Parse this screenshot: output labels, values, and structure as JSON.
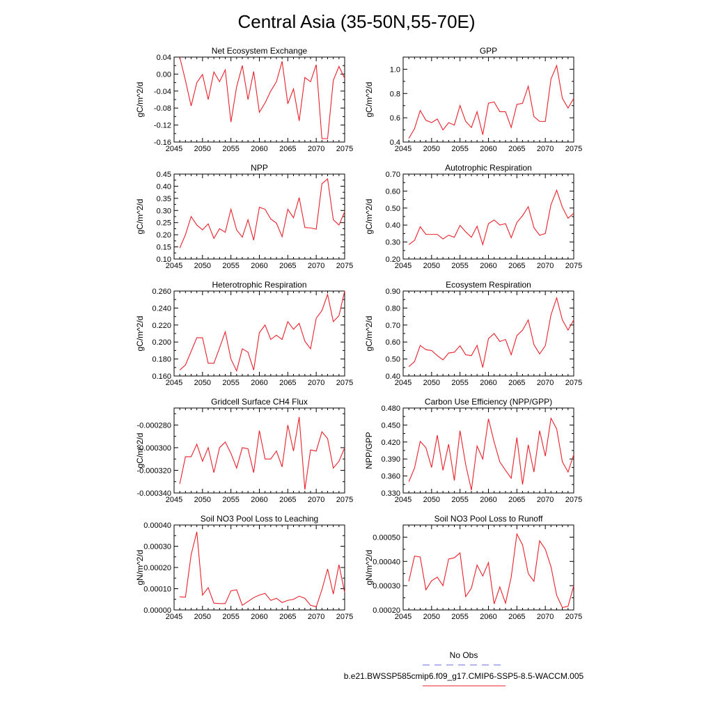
{
  "figure": {
    "title": "Central Asia (35-50N,55-70E)",
    "legend": [
      {
        "label": "No Obs",
        "color": "#6a6adf",
        "dash": true
      },
      {
        "label": "b.e21.BWSSP585cmip6.f09_g17.CMIP6-SSP5-8.5-WACCM.005",
        "color": "#e8202a",
        "dash": false
      }
    ]
  },
  "chart_data": [
    {
      "type": "line",
      "title": "Net Ecosystem Exchange",
      "ylabel": "gC/m^2/d",
      "xlim": [
        2045,
        2075
      ],
      "xticks": [
        2045,
        2050,
        2055,
        2060,
        2065,
        2070,
        2075
      ],
      "ylim": [
        -0.16,
        0.04
      ],
      "yticks": [
        -0.16,
        -0.12,
        -0.08,
        -0.04,
        0.0,
        0.04
      ],
      "ytick_labels": [
        "-0.16",
        "-0.12",
        "-0.08",
        "-0.04",
        "0.00",
        "0.04"
      ],
      "x": [
        2046,
        2047,
        2048,
        2049,
        2050,
        2051,
        2052,
        2053,
        2054,
        2055,
        2056,
        2057,
        2058,
        2059,
        2060,
        2061,
        2062,
        2063,
        2064,
        2065,
        2066,
        2067,
        2068,
        2069,
        2070,
        2071,
        2072,
        2073,
        2074,
        2075
      ],
      "series": [
        {
          "values": [
            0.04,
            -0.015,
            -0.075,
            -0.02,
            -0.001,
            -0.06,
            0.005,
            -0.018,
            0.01,
            -0.113,
            -0.03,
            0.02,
            -0.06,
            0.006,
            -0.09,
            -0.068,
            -0.04,
            -0.018,
            0.03,
            -0.07,
            -0.035,
            -0.11,
            -0.008,
            -0.018,
            0.022,
            -0.152,
            -0.152,
            -0.015,
            0.018,
            -0.01
          ],
          "color": "#e8202a"
        }
      ]
    },
    {
      "type": "line",
      "title": "GPP",
      "ylabel": "gC/m^2/d",
      "xlim": [
        2045,
        2075
      ],
      "xticks": [
        2045,
        2050,
        2055,
        2060,
        2065,
        2070,
        2075
      ],
      "ylim": [
        0.4,
        1.1
      ],
      "yticks": [
        0.4,
        0.6,
        0.8,
        1.0
      ],
      "ytick_labels": [
        "0.4",
        "0.6",
        "0.8",
        "1.0"
      ],
      "x": [
        2046,
        2047,
        2048,
        2049,
        2050,
        2051,
        2052,
        2053,
        2054,
        2055,
        2056,
        2057,
        2058,
        2059,
        2060,
        2061,
        2062,
        2063,
        2064,
        2065,
        2066,
        2067,
        2068,
        2069,
        2070,
        2071,
        2072,
        2073,
        2074,
        2075
      ],
      "series": [
        {
          "values": [
            0.43,
            0.51,
            0.66,
            0.58,
            0.56,
            0.59,
            0.5,
            0.56,
            0.54,
            0.7,
            0.57,
            0.52,
            0.65,
            0.46,
            0.72,
            0.73,
            0.65,
            0.65,
            0.52,
            0.71,
            0.72,
            0.86,
            0.61,
            0.57,
            0.57,
            0.92,
            1.03,
            0.76,
            0.68,
            0.76
          ],
          "color": "#e8202a"
        }
      ]
    },
    {
      "type": "line",
      "title": "NPP",
      "ylabel": "gC/m^2/d",
      "xlim": [
        2045,
        2075
      ],
      "xticks": [
        2045,
        2050,
        2055,
        2060,
        2065,
        2070,
        2075
      ],
      "ylim": [
        0.1,
        0.45
      ],
      "yticks": [
        0.1,
        0.15,
        0.2,
        0.25,
        0.3,
        0.35,
        0.4,
        0.45
      ],
      "ytick_labels": [
        "0.10",
        "0.15",
        "0.20",
        "0.25",
        "0.30",
        "0.35",
        "0.40",
        "0.45"
      ],
      "x": [
        2046,
        2047,
        2048,
        2049,
        2050,
        2051,
        2052,
        2053,
        2054,
        2055,
        2056,
        2057,
        2058,
        2059,
        2060,
        2061,
        2062,
        2063,
        2064,
        2065,
        2066,
        2067,
        2068,
        2069,
        2070,
        2071,
        2072,
        2073,
        2074,
        2075
      ],
      "series": [
        {
          "values": [
            0.145,
            0.2,
            0.275,
            0.24,
            0.22,
            0.245,
            0.185,
            0.225,
            0.21,
            0.305,
            0.22,
            0.19,
            0.262,
            0.178,
            0.313,
            0.305,
            0.265,
            0.248,
            0.192,
            0.305,
            0.27,
            0.353,
            0.23,
            0.228,
            0.223,
            0.41,
            0.43,
            0.262,
            0.24,
            0.295
          ],
          "color": "#e8202a"
        }
      ]
    },
    {
      "type": "line",
      "title": "Autotrophic Respiration",
      "ylabel": "gC/m^2/d",
      "xlim": [
        2045,
        2075
      ],
      "xticks": [
        2045,
        2050,
        2055,
        2060,
        2065,
        2070,
        2075
      ],
      "ylim": [
        0.2,
        0.7
      ],
      "yticks": [
        0.2,
        0.3,
        0.4,
        0.5,
        0.6,
        0.7
      ],
      "ytick_labels": [
        "0.20",
        "0.30",
        "0.40",
        "0.50",
        "0.60",
        "0.70"
      ],
      "x": [
        2046,
        2047,
        2048,
        2049,
        2050,
        2051,
        2052,
        2053,
        2054,
        2055,
        2056,
        2057,
        2058,
        2059,
        2060,
        2061,
        2062,
        2063,
        2064,
        2065,
        2066,
        2067,
        2068,
        2069,
        2070,
        2071,
        2072,
        2073,
        2074,
        2075
      ],
      "series": [
        {
          "values": [
            0.285,
            0.31,
            0.39,
            0.345,
            0.345,
            0.345,
            0.318,
            0.34,
            0.328,
            0.398,
            0.36,
            0.328,
            0.393,
            0.285,
            0.408,
            0.43,
            0.4,
            0.408,
            0.325,
            0.415,
            0.455,
            0.508,
            0.385,
            0.34,
            0.35,
            0.52,
            0.605,
            0.505,
            0.44,
            0.47
          ],
          "color": "#e8202a"
        }
      ]
    },
    {
      "type": "line",
      "title": "Heterotrophic Respiration",
      "ylabel": "gC/m^2/d",
      "xlim": [
        2045,
        2075
      ],
      "xticks": [
        2045,
        2050,
        2055,
        2060,
        2065,
        2070,
        2075
      ],
      "ylim": [
        0.16,
        0.26
      ],
      "yticks": [
        0.16,
        0.18,
        0.2,
        0.22,
        0.24,
        0.26
      ],
      "ytick_labels": [
        "0.160",
        "0.180",
        "0.200",
        "0.220",
        "0.240",
        "0.260"
      ],
      "x": [
        2046,
        2047,
        2048,
        2049,
        2050,
        2051,
        2052,
        2053,
        2054,
        2055,
        2056,
        2057,
        2058,
        2059,
        2060,
        2061,
        2062,
        2063,
        2064,
        2065,
        2066,
        2067,
        2068,
        2069,
        2070,
        2071,
        2072,
        2073,
        2074,
        2075
      ],
      "series": [
        {
          "values": [
            0.167,
            0.173,
            0.189,
            0.205,
            0.205,
            0.175,
            0.175,
            0.193,
            0.212,
            0.18,
            0.166,
            0.192,
            0.188,
            0.167,
            0.211,
            0.22,
            0.203,
            0.208,
            0.203,
            0.224,
            0.215,
            0.222,
            0.201,
            0.192,
            0.228,
            0.237,
            0.256,
            0.224,
            0.231,
            0.26
          ],
          "color": "#e8202a"
        }
      ]
    },
    {
      "type": "line",
      "title": "Ecosystem Respiration",
      "ylabel": "gC/m^2/d",
      "xlim": [
        2045,
        2075
      ],
      "xticks": [
        2045,
        2050,
        2055,
        2060,
        2065,
        2070,
        2075
      ],
      "ylim": [
        0.4,
        0.9
      ],
      "yticks": [
        0.4,
        0.5,
        0.6,
        0.7,
        0.8,
        0.9
      ],
      "ytick_labels": [
        "0.40",
        "0.50",
        "0.60",
        "0.70",
        "0.80",
        "0.90"
      ],
      "x": [
        2046,
        2047,
        2048,
        2049,
        2050,
        2051,
        2052,
        2053,
        2054,
        2055,
        2056,
        2057,
        2058,
        2059,
        2060,
        2061,
        2062,
        2063,
        2064,
        2065,
        2066,
        2067,
        2068,
        2069,
        2070,
        2071,
        2072,
        2073,
        2074,
        2075
      ],
      "series": [
        {
          "values": [
            0.455,
            0.485,
            0.58,
            0.555,
            0.55,
            0.52,
            0.495,
            0.535,
            0.54,
            0.578,
            0.525,
            0.52,
            0.58,
            0.45,
            0.62,
            0.65,
            0.603,
            0.615,
            0.525,
            0.638,
            0.67,
            0.73,
            0.585,
            0.53,
            0.578,
            0.76,
            0.86,
            0.73,
            0.67,
            0.73
          ],
          "color": "#e8202a"
        }
      ]
    },
    {
      "type": "line",
      "title": "Gridcell Surface CH4 Flux",
      "ylabel": "gC/m^2/d",
      "xlim": [
        2045,
        2075
      ],
      "xticks": [
        2045,
        2050,
        2055,
        2060,
        2065,
        2070,
        2075
      ],
      "ylim": [
        -0.00034,
        -0.000265
      ],
      "yticks": [
        -0.00034,
        -0.00032,
        -0.0003,
        -0.00028
      ],
      "ytick_labels": [
        "-0.000340",
        "-0.000320",
        "-0.000300",
        "-0.000280"
      ],
      "x": [
        2046,
        2047,
        2048,
        2049,
        2050,
        2051,
        2052,
        2053,
        2054,
        2055,
        2056,
        2057,
        2058,
        2059,
        2060,
        2061,
        2062,
        2063,
        2064,
        2065,
        2066,
        2067,
        2068,
        2069,
        2070,
        2071,
        2072,
        2073,
        2074,
        2075
      ],
      "series": [
        {
          "values": [
            -0.000332,
            -0.000308,
            -0.000308,
            -0.000297,
            -0.000312,
            -0.0003,
            -0.000322,
            -0.0003,
            -0.000295,
            -0.000305,
            -0.000318,
            -0.0003,
            -0.000301,
            -0.000322,
            -0.000285,
            -0.00031,
            -0.00031,
            -0.000303,
            -0.000317,
            -0.00028,
            -0.000303,
            -0.000273,
            -0.000337,
            -0.000302,
            -0.000303,
            -0.000286,
            -0.000292,
            -0.000318,
            -0.000312,
            -0.0003
          ],
          "color": "#e8202a"
        }
      ]
    },
    {
      "type": "line",
      "title": "Carbon Use Efficiency (NPP/GPP)",
      "ylabel": "NPP/GPP",
      "xlim": [
        2045,
        2075
      ],
      "xticks": [
        2045,
        2050,
        2055,
        2060,
        2065,
        2070,
        2075
      ],
      "ylim": [
        0.33,
        0.48
      ],
      "yticks": [
        0.33,
        0.36,
        0.39,
        0.42,
        0.45,
        0.48
      ],
      "ytick_labels": [
        "0.330",
        "0.360",
        "0.390",
        "0.420",
        "0.450",
        "0.480"
      ],
      "x": [
        2046,
        2047,
        2048,
        2049,
        2050,
        2051,
        2052,
        2053,
        2054,
        2055,
        2056,
        2057,
        2058,
        2059,
        2060,
        2061,
        2062,
        2063,
        2064,
        2065,
        2066,
        2067,
        2068,
        2069,
        2070,
        2071,
        2072,
        2073,
        2074,
        2075
      ],
      "series": [
        {
          "values": [
            0.35,
            0.374,
            0.421,
            0.41,
            0.375,
            0.432,
            0.37,
            0.416,
            0.352,
            0.44,
            0.38,
            0.335,
            0.413,
            0.39,
            0.461,
            0.42,
            0.385,
            0.37,
            0.356,
            0.428,
            0.345,
            0.415,
            0.367,
            0.44,
            0.395,
            0.462,
            0.443,
            0.385,
            0.367,
            0.398
          ],
          "color": "#e8202a"
        }
      ]
    },
    {
      "type": "line",
      "title": "Soil NO3 Pool Loss to Leaching",
      "ylabel": "gN/m^2/d",
      "xlim": [
        2045,
        2075
      ],
      "xticks": [
        2045,
        2050,
        2055,
        2060,
        2065,
        2070,
        2075
      ],
      "ylim": [
        0.0,
        0.0004
      ],
      "yticks": [
        0.0,
        0.0001,
        0.0002,
        0.0003,
        0.0004
      ],
      "ytick_labels": [
        "0.00000",
        "0.00010",
        "0.00020",
        "0.00030",
        "0.00040"
      ],
      "x": [
        2046,
        2047,
        2048,
        2049,
        2050,
        2051,
        2052,
        2053,
        2054,
        2055,
        2056,
        2057,
        2058,
        2059,
        2060,
        2061,
        2062,
        2063,
        2064,
        2065,
        2066,
        2067,
        2068,
        2069,
        2070,
        2071,
        2072,
        2073,
        2074,
        2075
      ],
      "series": [
        {
          "values": [
            6.2e-05,
            6e-05,
            0.00026,
            0.000368,
            7e-05,
            0.000105,
            3.2e-05,
            3e-05,
            3e-05,
            9e-05,
            9.5e-05,
            2.2e-05,
            4e-05,
            5.8e-05,
            7e-05,
            7.8e-05,
            4.5e-05,
            5.5e-05,
            3.5e-05,
            4.5e-05,
            5e-05,
            6.5e-05,
            5.5e-05,
            2.2e-05,
            1.5e-05,
            9.5e-05,
            0.000193,
            7.5e-05,
            0.000213,
            8.2e-05
          ],
          "color": "#e8202a"
        }
      ]
    },
    {
      "type": "line",
      "title": "Soil NO3 Pool Loss to Runoff",
      "ylabel": "gN/m^2/d",
      "xlim": [
        2045,
        2075
      ],
      "xticks": [
        2045,
        2050,
        2055,
        2060,
        2065,
        2070,
        2075
      ],
      "ylim": [
        0.0002,
        0.00055
      ],
      "yticks": [
        0.0002,
        0.0003,
        0.0004,
        0.0005
      ],
      "ytick_labels": [
        "0.00020",
        "0.00030",
        "0.00040",
        "0.00050"
      ],
      "x": [
        2046,
        2047,
        2048,
        2049,
        2050,
        2051,
        2052,
        2053,
        2054,
        2055,
        2056,
        2057,
        2058,
        2059,
        2060,
        2061,
        2062,
        2063,
        2064,
        2065,
        2066,
        2067,
        2068,
        2069,
        2070,
        2071,
        2072,
        2073,
        2074,
        2075
      ],
      "series": [
        {
          "values": [
            0.000318,
            0.000422,
            0.000418,
            0.000283,
            0.00032,
            0.000335,
            0.0003,
            0.00041,
            0.000415,
            0.000435,
            0.000255,
            0.00029,
            0.000385,
            0.00034,
            0.000395,
            0.000225,
            0.000295,
            0.000228,
            0.000335,
            0.000513,
            0.000468,
            0.00035,
            0.000318,
            0.000485,
            0.00045,
            0.000378,
            0.00026,
            0.00021,
            0.000215,
            0.0003
          ],
          "color": "#e8202a"
        }
      ]
    }
  ]
}
